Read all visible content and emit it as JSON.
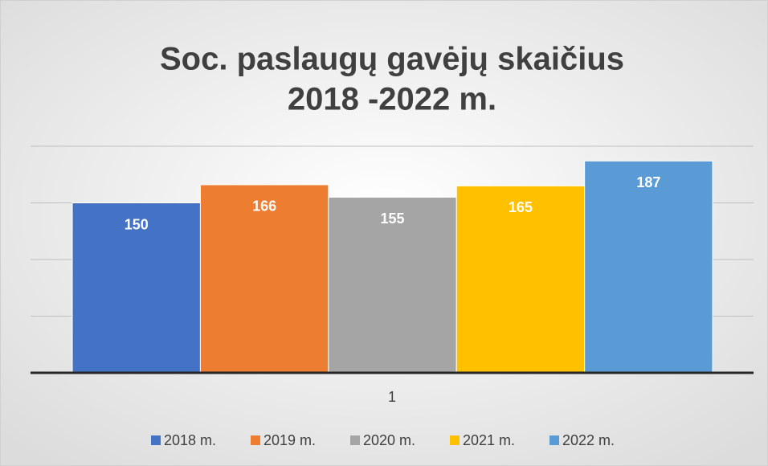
{
  "chart_data": {
    "type": "bar",
    "title": [
      "Soc. paslaugų gavėjų skaičius",
      "2018 -2022 m."
    ],
    "categories": [
      "1"
    ],
    "series": [
      {
        "name": "2018 m.",
        "color": "#4472c4",
        "values": [
          150
        ]
      },
      {
        "name": "2019 m.",
        "color": "#ed7d31",
        "values": [
          166
        ]
      },
      {
        "name": "2020 m.",
        "color": "#a5a5a5",
        "values": [
          155
        ]
      },
      {
        "name": "2021 m.",
        "color": "#ffc000",
        "values": [
          165
        ]
      },
      {
        "name": "2022 m.",
        "color": "#5b9bd5",
        "values": [
          187
        ]
      }
    ],
    "ylim": [
      0,
      200
    ],
    "yticks": [
      0,
      50,
      100,
      150,
      200
    ],
    "grid": true,
    "legend": "bottom"
  }
}
